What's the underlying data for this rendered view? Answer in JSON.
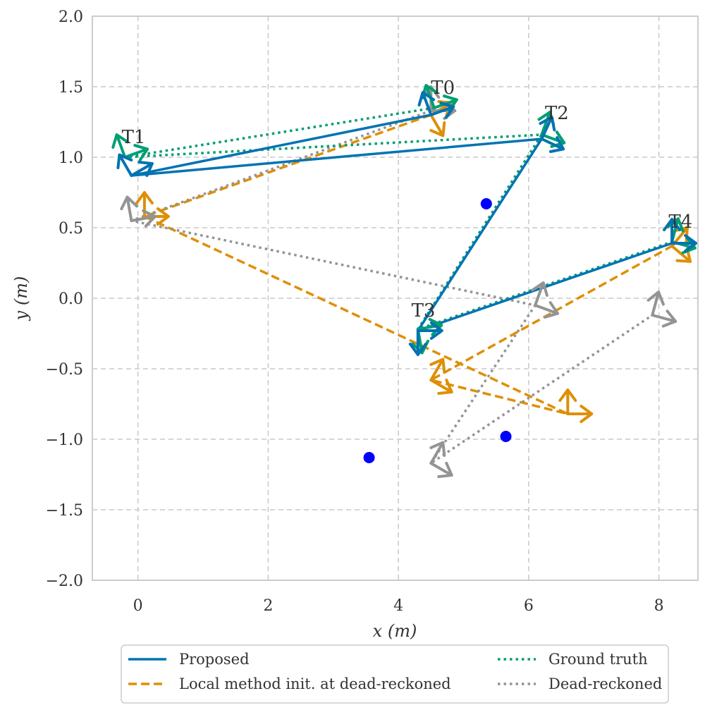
{
  "chart_data": {
    "type": "line",
    "xlabel": "x (m)",
    "ylabel": "y (m)",
    "xlim": [
      -0.7,
      8.6
    ],
    "ylim": [
      -2.0,
      2.0
    ],
    "grid": true,
    "legend_position": "bottom",
    "x_ticks": [
      0,
      2,
      4,
      6,
      8
    ],
    "x_tick_labels": [
      "0",
      "2",
      "4",
      "6",
      "8"
    ],
    "y_ticks": [
      -2.0,
      -1.5,
      -1.0,
      -0.5,
      0.0,
      0.5,
      1.0,
      1.5,
      2.0
    ],
    "y_tick_labels": [
      "−2.0",
      "−1.5",
      "−1.0",
      "−0.5",
      "0.0",
      "0.5",
      "1.0",
      "1.5",
      "2.0"
    ],
    "series": [
      {
        "name": "Proposed",
        "color": "#0173b2",
        "style": "solid",
        "points": [
          [
            4.5,
            1.3
          ],
          [
            -0.1,
            0.87
          ],
          [
            6.2,
            1.13
          ],
          [
            4.3,
            -0.23
          ],
          [
            8.2,
            0.39
          ]
        ],
        "arrow_headings_deg": [
          110,
          120,
          65,
          0,
          90
        ]
      },
      {
        "name": "Local method init. at dead-reckoned",
        "color": "#de8f05",
        "style": "dashed",
        "points": [
          [
            4.5,
            1.3
          ],
          [
            0.1,
            0.58
          ],
          [
            6.6,
            -0.82
          ],
          [
            4.5,
            -0.58
          ],
          [
            8.2,
            0.37
          ]
        ],
        "arrow_headings_deg": [
          30,
          90,
          90,
          60,
          50
        ]
      },
      {
        "name": "Ground truth",
        "color": "#029e73",
        "style": "dotted",
        "points": [
          [
            4.55,
            1.35
          ],
          [
            -0.2,
            1.0
          ],
          [
            6.2,
            1.16
          ],
          [
            4.3,
            -0.22
          ],
          [
            8.2,
            0.4
          ]
        ],
        "arrow_headings_deg": [
          110,
          110,
          70,
          10,
          75
        ]
      },
      {
        "name": "Dead-reckoned",
        "color": "#949494",
        "style": "dotted",
        "points": [
          [
            4.5,
            1.33
          ],
          [
            -0.1,
            0.55
          ],
          [
            6.1,
            -0.05
          ],
          [
            4.5,
            -1.17
          ],
          [
            7.9,
            -0.12
          ]
        ],
        "arrow_headings_deg": [
          90,
          100,
          70,
          60,
          75
        ]
      }
    ],
    "annotations": [
      {
        "text": "T0",
        "x": 4.5,
        "y": 1.45
      },
      {
        "text": "T1",
        "x": -0.25,
        "y": 1.1
      },
      {
        "text": "T2",
        "x": 6.25,
        "y": 1.27
      },
      {
        "text": "T3",
        "x": 4.2,
        "y": -0.13
      },
      {
        "text": "T4",
        "x": 8.15,
        "y": 0.5
      }
    ],
    "landmarks": {
      "color": "#0000ff",
      "points": [
        [
          5.35,
          0.67
        ],
        [
          3.55,
          -1.13
        ],
        [
          5.65,
          -0.98
        ]
      ]
    }
  }
}
